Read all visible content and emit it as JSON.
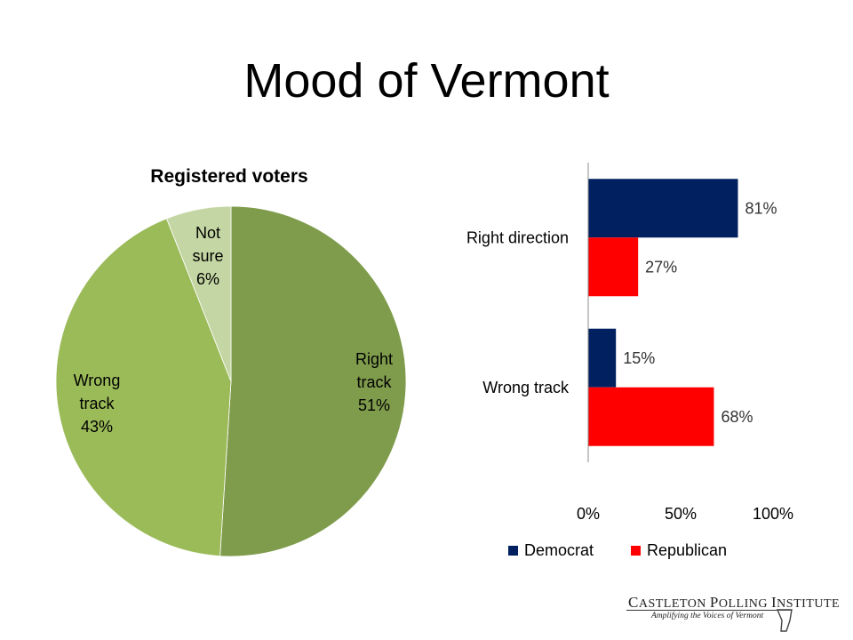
{
  "page": {
    "title": "Mood of Vermont"
  },
  "chart_data": [
    {
      "type": "pie",
      "title": "Registered voters",
      "slices": [
        {
          "line1": "Right",
          "line2": "track",
          "value_label": "51%",
          "value": 51,
          "color": "#7f9c4c"
        },
        {
          "line1": "Wrong",
          "line2": "track",
          "value_label": "43%",
          "value": 43,
          "color": "#9bbb59"
        },
        {
          "line1": "Not",
          "line2": "sure",
          "value_label": "6%",
          "value": 6,
          "color": "#c4d6a3"
        }
      ]
    },
    {
      "type": "bar",
      "orientation": "horizontal",
      "categories": [
        "Right direction",
        "Wrong track"
      ],
      "series": [
        {
          "name": "Democrat",
          "values": [
            81,
            15
          ],
          "labels": [
            "81%",
            "15%"
          ],
          "color": "#002060"
        },
        {
          "name": "Republican",
          "values": [
            27,
            68
          ],
          "labels": [
            "27%",
            "68%"
          ],
          "color": "#ff0000"
        }
      ],
      "xlim": [
        0,
        100
      ],
      "xticks": [
        "0%",
        "50%",
        "100%"
      ],
      "legend_position": "bottom"
    }
  ],
  "logo": {
    "name_first": "C",
    "name_rest1": "ASTLETON ",
    "name_p": "P",
    "name_rest2": "OLLING ",
    "name_i": "I",
    "name_rest3": "NSTITUTE",
    "tagline": "Amplifying the Voices of Vermont"
  }
}
